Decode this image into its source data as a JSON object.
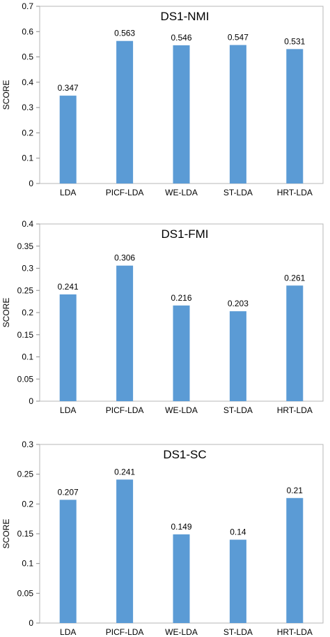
{
  "chart_data": [
    {
      "type": "bar",
      "title": "DS1-NMI",
      "ylabel": "SCORE",
      "xlabel": "",
      "categories": [
        "LDA",
        "PICF-LDA",
        "WE-LDA",
        "ST-LDA",
        "HRT-LDA"
      ],
      "values": [
        0.347,
        0.563,
        0.546,
        0.547,
        0.531
      ],
      "value_labels": [
        "0.347",
        "0.563",
        "0.546",
        "0.547",
        "0.531"
      ],
      "ylim": [
        0,
        0.7
      ],
      "yticks": [
        0,
        0.1,
        0.2,
        0.3,
        0.4,
        0.5,
        0.6,
        0.7
      ],
      "ytick_labels": [
        "0",
        "0.1",
        "0.2",
        "0.3",
        "0.4",
        "0.5",
        "0.6",
        "0.7"
      ],
      "grid": false,
      "bar_color": "#5b9bd5"
    },
    {
      "type": "bar",
      "title": "DS1-FMI",
      "ylabel": "SCORE",
      "xlabel": "",
      "categories": [
        "LDA",
        "PICF-LDA",
        "WE-LDA",
        "ST-LDA",
        "HRT-LDA"
      ],
      "values": [
        0.241,
        0.306,
        0.216,
        0.203,
        0.261
      ],
      "value_labels": [
        "0.241",
        "0.306",
        "0.216",
        "0.203",
        "0.261"
      ],
      "ylim": [
        0,
        0.4
      ],
      "yticks": [
        0,
        0.05,
        0.1,
        0.15,
        0.2,
        0.25,
        0.3,
        0.35,
        0.4
      ],
      "ytick_labels": [
        "0",
        "0.05",
        "0.1",
        "0.15",
        "0.2",
        "0.25",
        "0.3",
        "0.35",
        "0.4"
      ],
      "grid": false,
      "bar_color": "#5b9bd5"
    },
    {
      "type": "bar",
      "title": "DS1-SC",
      "ylabel": "SCORE",
      "xlabel": "",
      "categories": [
        "LDA",
        "PICF-LDA",
        "WE-LDA",
        "ST-LDA",
        "HRT-LDA"
      ],
      "values": [
        0.207,
        0.241,
        0.149,
        0.14,
        0.21
      ],
      "value_labels": [
        "0.207",
        "0.241",
        "0.149",
        "0.14",
        "0.21"
      ],
      "ylim": [
        0,
        0.3
      ],
      "yticks": [
        0,
        0.05,
        0.1,
        0.15,
        0.2,
        0.25,
        0.3
      ],
      "ytick_labels": [
        "0",
        "0.05",
        "0.1",
        "0.15",
        "0.2",
        "0.25",
        "0.3"
      ],
      "grid": false,
      "bar_color": "#5b9bd5"
    }
  ]
}
